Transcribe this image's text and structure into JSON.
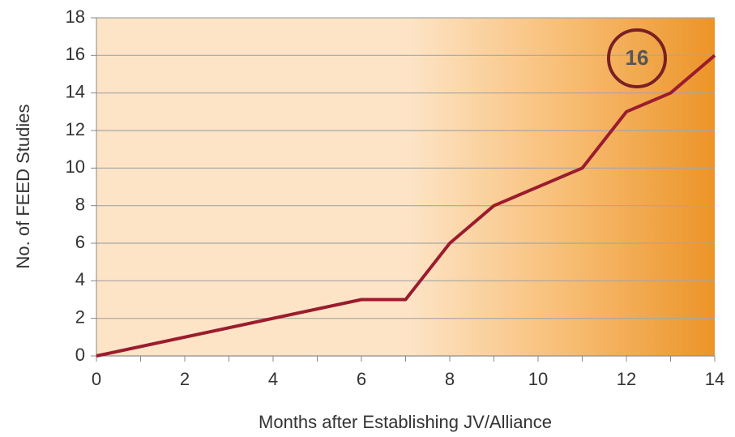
{
  "chart_data": {
    "type": "line",
    "x_label": "Months after Establishing JV/Alliance",
    "y_label": "No. of FEED Studies",
    "annotation": "16",
    "series": [
      {
        "name": "FEED Studies",
        "color": "#9b1c2e",
        "x": [
          0,
          6,
          7,
          8,
          9,
          11,
          12,
          13,
          14
        ],
        "values": [
          0,
          3,
          3,
          6,
          8,
          10,
          13,
          14,
          16
        ]
      }
    ],
    "xlim": [
      0,
      14
    ],
    "xticks": [
      0,
      2,
      4,
      6,
      8,
      10,
      12,
      14
    ],
    "xminorticks": [
      1,
      3,
      5,
      7,
      9,
      11,
      13
    ],
    "ylim": [
      0,
      18
    ],
    "yticks": [
      0,
      2,
      4,
      6,
      8,
      10,
      12,
      14,
      16,
      18
    ],
    "grid": true
  }
}
